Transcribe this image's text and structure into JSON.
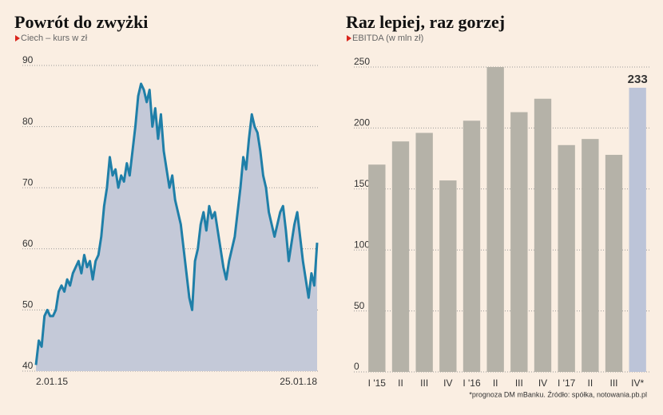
{
  "chart_data": [
    {
      "type": "area",
      "title": "Powrót do zwyżki",
      "subtitle": "Ciech – kurs w zł",
      "categories": [
        "2.01.15",
        null,
        null,
        null,
        null,
        null,
        null,
        null,
        null,
        null,
        null,
        null,
        null,
        null,
        null,
        null,
        null,
        null,
        null,
        null,
        null,
        null,
        null,
        null,
        null,
        null,
        null,
        null,
        null,
        null,
        null,
        null,
        null,
        null,
        null,
        null,
        null,
        null,
        null,
        null,
        null,
        null,
        null,
        null,
        null,
        null,
        null,
        null,
        null,
        null,
        null,
        null,
        null,
        null,
        null,
        null,
        null,
        null,
        null,
        null,
        null,
        null,
        null,
        null,
        null,
        null,
        null,
        null,
        null,
        null,
        null,
        null,
        null,
        null,
        null,
        null,
        null,
        null,
        null,
        null,
        null,
        null,
        null,
        null,
        null,
        null,
        null,
        null,
        null,
        null,
        null,
        null,
        null,
        null,
        null,
        null,
        null,
        null,
        null,
        "25.01.18"
      ],
      "values": [
        41,
        45,
        44,
        49,
        50,
        49,
        49,
        50,
        53,
        54,
        53,
        55,
        54,
        56,
        57,
        58,
        56,
        59,
        57,
        58,
        55,
        58,
        59,
        62,
        67,
        70,
        75,
        72,
        73,
        70,
        72,
        71,
        74,
        72,
        76,
        80,
        85,
        87,
        86,
        84,
        86,
        80,
        83,
        78,
        82,
        76,
        73,
        70,
        72,
        68,
        66,
        64,
        60,
        56,
        52,
        50,
        58,
        60,
        64,
        66,
        63,
        67,
        65,
        66,
        63,
        60,
        57,
        55,
        58,
        60,
        62,
        66,
        70,
        75,
        73,
        78,
        82,
        80,
        79,
        76,
        72,
        70,
        66,
        64,
        62,
        64,
        66,
        67,
        63,
        58,
        61,
        64,
        66,
        62,
        58,
        55,
        52,
        56,
        54,
        61
      ],
      "color": "#1f7fa8",
      "fill": "#c4c9d8",
      "ylim": [
        40,
        90
      ],
      "yticks": [
        40,
        50,
        60,
        70,
        80,
        90
      ],
      "grid": true
    },
    {
      "type": "bar",
      "title": "Raz lepiej, raz gorzej",
      "subtitle": "EBITDA (w mln zł)",
      "categories": [
        "I '15",
        "II",
        "III",
        "IV",
        "I '16",
        "II",
        "III",
        "IV",
        "I '17",
        "II",
        "III",
        "IV*"
      ],
      "values": [
        170,
        189,
        196,
        157,
        206,
        250,
        213,
        224,
        186,
        191,
        178,
        233
      ],
      "value_labels": [
        null,
        null,
        null,
        null,
        null,
        null,
        null,
        null,
        null,
        null,
        null,
        "233"
      ],
      "colors": [
        "#b5b2a8",
        "#b5b2a8",
        "#b5b2a8",
        "#b5b2a8",
        "#b5b2a8",
        "#b5b2a8",
        "#b5b2a8",
        "#b5b2a8",
        "#b5b2a8",
        "#b5b2a8",
        "#b5b2a8",
        "#bcc4d8"
      ],
      "ylim": [
        0,
        250
      ],
      "yticks": [
        0,
        50,
        100,
        150,
        200,
        250
      ],
      "grid": true,
      "note": "*prognoza DM mBanku. Źródło: spółka, notowania.pb.pl"
    }
  ]
}
